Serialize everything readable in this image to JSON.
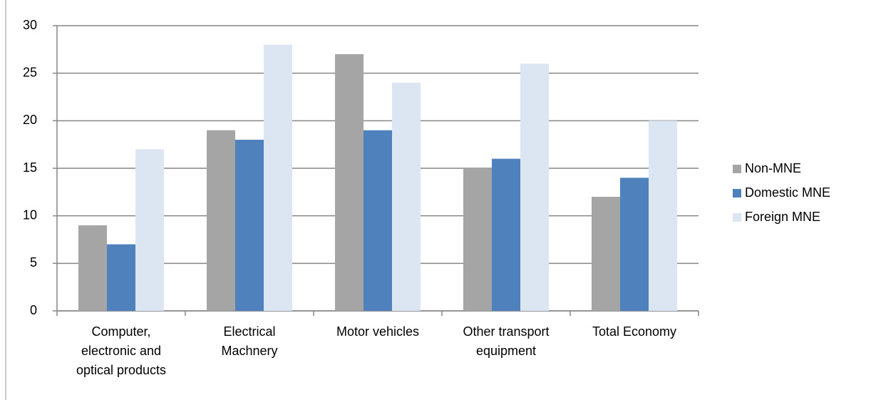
{
  "chart_data": {
    "type": "bar",
    "categories": [
      "Computer, electronic and optical products",
      "Electrical Machnery",
      "Motor vehicles",
      "Other transport equipment",
      "Total Economy"
    ],
    "series": [
      {
        "name": "Non-MNE",
        "color": "#a5a5a5",
        "values": [
          9,
          19,
          27,
          15,
          12
        ]
      },
      {
        "name": "Domestic MNE",
        "color": "#4f81bd",
        "values": [
          7,
          18,
          19,
          16,
          14
        ]
      },
      {
        "name": "Foreign MNE",
        "color": "#dce6f2",
        "values": [
          17,
          28,
          24,
          26,
          20
        ]
      }
    ],
    "ylim": [
      0,
      30
    ],
    "yticks": [
      0,
      5,
      10,
      15,
      20,
      25,
      30
    ],
    "grid": true,
    "legend": "right"
  }
}
